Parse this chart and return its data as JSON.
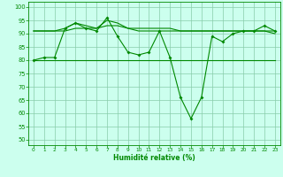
{
  "xlabel": "Humidité relative (%)",
  "xlim": [
    -0.5,
    23.5
  ],
  "ylim": [
    48,
    102
  ],
  "yticks": [
    50,
    55,
    60,
    65,
    70,
    75,
    80,
    85,
    90,
    95,
    100
  ],
  "xticks": [
    0,
    1,
    2,
    3,
    4,
    5,
    6,
    7,
    8,
    9,
    10,
    11,
    12,
    13,
    14,
    15,
    16,
    17,
    18,
    19,
    20,
    21,
    22,
    23
  ],
  "bg_color": "#ccffee",
  "grid_color": "#88ccaa",
  "line_color": "#008800",
  "series_main": [
    80,
    81,
    81,
    92,
    94,
    92,
    91,
    96,
    89,
    83,
    82,
    83,
    91,
    81,
    66,
    58,
    66,
    89,
    87,
    90,
    91,
    91,
    93,
    91
  ],
  "series_upper1": [
    91,
    91,
    91,
    92,
    94,
    93,
    92,
    95,
    94,
    92,
    92,
    92,
    92,
    92,
    91,
    91,
    91,
    91,
    91,
    91,
    91,
    91,
    91,
    91
  ],
  "series_upper2": [
    91,
    91,
    91,
    91,
    92,
    92,
    92,
    93,
    93,
    92,
    91,
    91,
    91,
    91,
    91,
    91,
    91,
    91,
    91,
    91,
    91,
    91,
    91,
    90
  ],
  "series_flat": [
    80,
    80,
    80,
    80,
    80,
    80,
    80,
    80,
    80,
    80,
    80,
    80,
    80,
    80,
    80,
    80,
    80,
    80,
    80,
    80,
    80,
    80,
    80,
    80
  ]
}
